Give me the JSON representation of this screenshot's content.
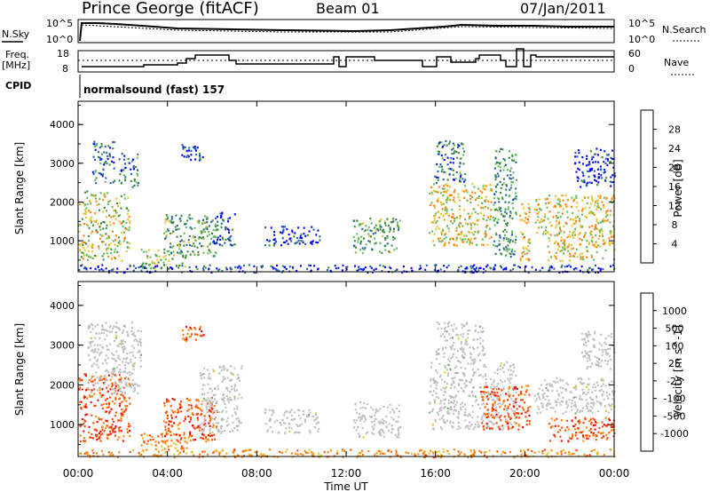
{
  "header": {
    "station": "Prince George (fitACF)",
    "beam": "Beam 01",
    "date": "07/Jan/2011"
  },
  "control_panel": {
    "nsky_label": "N.Sky",
    "nsky_ticks": [
      "10^5",
      "10^0"
    ],
    "nsearch_label": "N.Search",
    "nsearch_ticks": [
      "10^5",
      "10^0"
    ],
    "freq_label": "Freq.",
    "freq_unit": "[MHz]",
    "freq_ticks": [
      "18",
      "8"
    ],
    "nave_label": "Nave",
    "nave_ticks": [
      "60",
      "0"
    ],
    "cpid_label": "CPID",
    "cpid_value": "normalsound (fast) 157"
  },
  "colors": {
    "power_scale": [
      "#0000ff",
      "#1f5fa8",
      "#3a8a3c",
      "#63b85a",
      "#e6c229",
      "#ff8000",
      "#ff4400",
      "#ee0000"
    ],
    "velocity_scale": [
      "#0000ff",
      "#1f5fa8",
      "#3a8a3c",
      "#63b85a",
      "#bfbfbf",
      "#e6c229",
      "#ff8000",
      "#ff4400",
      "#ee0000"
    ]
  },
  "chart_data": [
    {
      "type": "heatmap",
      "name": "power",
      "ylabel": "Slant Range [km]",
      "yticks": [
        "1000",
        "2000",
        "3000",
        "4000"
      ],
      "ylim": [
        200,
        4600
      ],
      "xlim": [
        0,
        24
      ],
      "colorbar_label": "Power [dB]",
      "colorbar_ticks": [
        "4",
        "8",
        "12",
        "16",
        "20",
        "24",
        "28"
      ],
      "colorbar_range": [
        0,
        32
      ],
      "echo_regions": [
        {
          "t0": 0.0,
          "t1": 2.3,
          "r0": 500,
          "r1": 2300,
          "v": 18
        },
        {
          "t0": 0.6,
          "t1": 1.6,
          "r0": 2500,
          "r1": 3600,
          "v": 10
        },
        {
          "t0": 1.8,
          "t1": 2.7,
          "r0": 2400,
          "r1": 3300,
          "v": 10
        },
        {
          "t0": 2.8,
          "t1": 4.8,
          "r0": 300,
          "r1": 800,
          "v": 16
        },
        {
          "t0": 3.8,
          "t1": 6.2,
          "r0": 600,
          "r1": 1700,
          "v": 14
        },
        {
          "t0": 4.6,
          "t1": 5.6,
          "r0": 3100,
          "r1": 3500,
          "v": 5
        },
        {
          "t0": 6.0,
          "t1": 7.0,
          "r0": 900,
          "r1": 1800,
          "v": 6
        },
        {
          "t0": 8.3,
          "t1": 10.8,
          "r0": 900,
          "r1": 1400,
          "v": 6
        },
        {
          "t0": 12.3,
          "t1": 14.4,
          "r0": 700,
          "r1": 1600,
          "v": 14
        },
        {
          "t0": 15.7,
          "t1": 18.6,
          "r0": 900,
          "r1": 2500,
          "v": 20
        },
        {
          "t0": 15.9,
          "t1": 17.3,
          "r0": 2500,
          "r1": 3600,
          "v": 10
        },
        {
          "t0": 18.6,
          "t1": 19.6,
          "r0": 600,
          "r1": 3400,
          "v": 12
        },
        {
          "t0": 19.7,
          "t1": 20.2,
          "r0": 500,
          "r1": 2000,
          "v": 22
        },
        {
          "t0": 20.4,
          "t1": 24.0,
          "r0": 1200,
          "r1": 2200,
          "v": 20
        },
        {
          "t0": 21.0,
          "t1": 24.0,
          "r0": 500,
          "r1": 1200,
          "v": 20
        },
        {
          "t0": 22.2,
          "t1": 24.0,
          "r0": 2400,
          "r1": 3400,
          "v": 5
        },
        {
          "t0": 0.0,
          "t1": 24.0,
          "r0": 200,
          "r1": 400,
          "v": 5
        }
      ]
    },
    {
      "type": "heatmap",
      "name": "velocity",
      "ylabel": "Slant Range [km]",
      "yticks": [
        "1000",
        "2000",
        "3000",
        "4000"
      ],
      "ylim": [
        200,
        4600
      ],
      "xlabel": "Time UT",
      "xticks": [
        "00:00",
        "04:00",
        "08:00",
        "12:00",
        "16:00",
        "20:00",
        "00:00"
      ],
      "xlim": [
        0,
        24
      ],
      "colorbar_label": "Velocity [m s^-1]",
      "colorbar_ticks": [
        "1000",
        "500",
        "100",
        "25",
        "-25",
        "-100",
        "-500",
        "-1000"
      ],
      "echo_regions": [
        {
          "t0": 0.0,
          "t1": 2.3,
          "r0": 600,
          "r1": 2300,
          "v": -500
        },
        {
          "t0": 0.4,
          "t1": 2.8,
          "r0": 1800,
          "r1": 3600,
          "v": 0
        },
        {
          "t0": 2.8,
          "t1": 5.0,
          "r0": 400,
          "r1": 800,
          "v": -100
        },
        {
          "t0": 3.8,
          "t1": 6.2,
          "r0": 600,
          "r1": 1700,
          "v": -500
        },
        {
          "t0": 4.6,
          "t1": 5.6,
          "r0": 3100,
          "r1": 3500,
          "v": -500
        },
        {
          "t0": 5.4,
          "t1": 7.3,
          "r0": 800,
          "r1": 2500,
          "v": 0
        },
        {
          "t0": 8.3,
          "t1": 10.8,
          "r0": 800,
          "r1": 1400,
          "v": 0
        },
        {
          "t0": 12.3,
          "t1": 14.4,
          "r0": 700,
          "r1": 1600,
          "v": 0
        },
        {
          "t0": 15.7,
          "t1": 19.6,
          "r0": 900,
          "r1": 2600,
          "v": 0
        },
        {
          "t0": 16.0,
          "t1": 18.2,
          "r0": 2600,
          "r1": 3600,
          "v": 0
        },
        {
          "t0": 18.0,
          "t1": 20.2,
          "r0": 900,
          "r1": 2000,
          "v": -500
        },
        {
          "t0": 20.4,
          "t1": 24.0,
          "r0": 1300,
          "r1": 2200,
          "v": 0
        },
        {
          "t0": 21.0,
          "t1": 24.0,
          "r0": 600,
          "r1": 1200,
          "v": -500
        },
        {
          "t0": 22.5,
          "t1": 24.0,
          "r0": 2400,
          "r1": 3400,
          "v": 0
        },
        {
          "t0": 0.0,
          "t1": 24.0,
          "r0": 200,
          "r1": 400,
          "v": -100
        }
      ]
    }
  ]
}
